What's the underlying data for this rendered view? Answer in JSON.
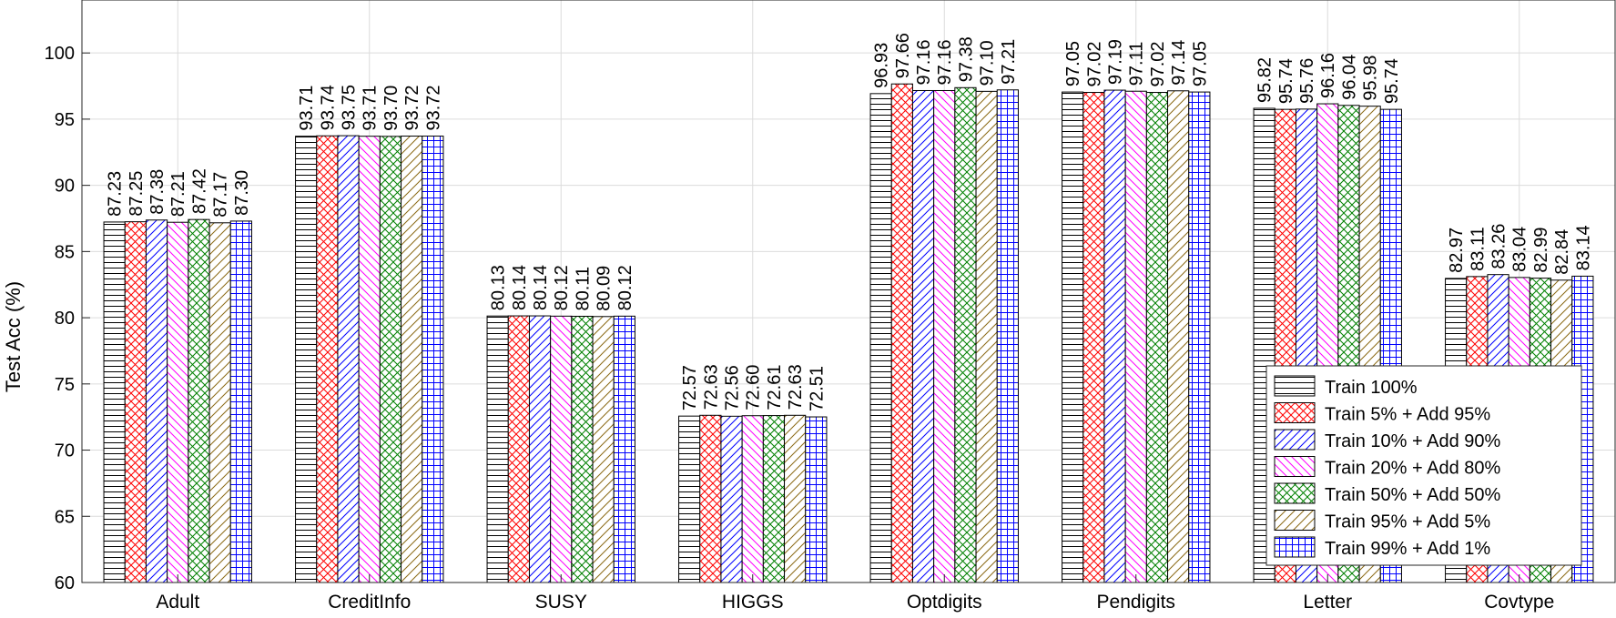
{
  "chart_data": {
    "type": "bar",
    "title": "",
    "xlabel": "",
    "ylabel": "Test Acc (%)",
    "ylim": [
      60,
      104
    ],
    "yticks": [
      "60",
      "65",
      "70",
      "75",
      "80",
      "85",
      "90",
      "95",
      "100"
    ],
    "grid": true,
    "legend_position": "bottom-right",
    "categories": [
      "Adult",
      "CreditInfo",
      "SUSY",
      "HIGGS",
      "Optdigits",
      "Pendigits",
      "Letter",
      "Covtype"
    ],
    "series": [
      {
        "name": "Train 100%",
        "color": "#000000",
        "pattern": "hlines",
        "values": [
          87.23,
          93.71,
          80.13,
          72.57,
          96.93,
          97.05,
          95.82,
          82.97
        ],
        "labels": [
          "87.23",
          "93.71",
          "80.13",
          "72.57",
          "96.93",
          "97.05",
          "95.82",
          "82.97"
        ]
      },
      {
        "name": "Train 5% + Add 95%",
        "color": "#ff0000",
        "pattern": "cross",
        "values": [
          87.25,
          93.74,
          80.14,
          72.63,
          97.66,
          97.02,
          95.74,
          83.11
        ],
        "labels": [
          "87.25",
          "93.74",
          "80.14",
          "72.63",
          "97.66",
          "97.02",
          "95.74",
          "83.11"
        ]
      },
      {
        "name": "Train 10% + Add 90%",
        "color": "#0000ff",
        "pattern": "diag-right",
        "values": [
          87.38,
          93.75,
          80.14,
          72.56,
          97.16,
          97.19,
          95.76,
          83.26
        ],
        "labels": [
          "87.38",
          "93.75",
          "80.14",
          "72.56",
          "97.16",
          "97.19",
          "95.76",
          "83.26"
        ]
      },
      {
        "name": "Train 20% + Add 80%",
        "color": "#ff00ff",
        "pattern": "diag-left",
        "values": [
          87.21,
          93.71,
          80.12,
          72.6,
          97.16,
          97.11,
          96.16,
          83.04
        ],
        "labels": [
          "87.21",
          "93.71",
          "80.12",
          "72.60",
          "97.16",
          "97.11",
          "96.16",
          "83.04"
        ]
      },
      {
        "name": "Train 50% + Add 50%",
        "color": "#008000",
        "pattern": "cross",
        "values": [
          87.42,
          93.7,
          80.11,
          72.61,
          97.38,
          97.02,
          96.04,
          82.99
        ],
        "labels": [
          "87.42",
          "93.70",
          "80.11",
          "72.61",
          "97.38",
          "97.02",
          "96.04",
          "82.99"
        ]
      },
      {
        "name": "Train 95% + Add 5%",
        "color": "#8b6914",
        "pattern": "diag-right",
        "values": [
          87.17,
          93.72,
          80.09,
          72.63,
          97.1,
          97.14,
          95.98,
          82.84
        ],
        "labels": [
          "87.17",
          "93.72",
          "80.09",
          "72.63",
          "97.10",
          "97.14",
          "95.98",
          "82.84"
        ]
      },
      {
        "name": "Train 99% + Add 1%",
        "color": "#0000ff",
        "pattern": "grid",
        "values": [
          87.3,
          93.72,
          80.12,
          72.51,
          97.21,
          97.05,
          95.74,
          83.14
        ],
        "labels": [
          "87.30",
          "93.72",
          "80.12",
          "72.51",
          "97.21",
          "97.05",
          "95.74",
          "83.14"
        ]
      }
    ]
  }
}
